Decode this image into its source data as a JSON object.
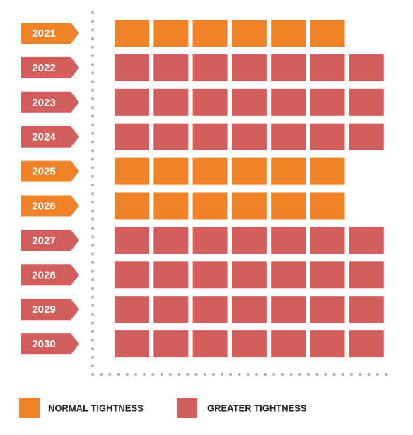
{
  "chart_data": {
    "type": "pictograph",
    "categories": [
      "2021",
      "2022",
      "2023",
      "2024",
      "2025",
      "2026",
      "2027",
      "2028",
      "2029",
      "2030"
    ],
    "series": [
      {
        "name": "NORMAL TIGHTNESS",
        "color": "#f0832a",
        "values": [
          6,
          null,
          null,
          null,
          6,
          6,
          null,
          null,
          null,
          null
        ]
      },
      {
        "name": "GREATER TIGHTNESS",
        "color": "#d45d5e",
        "values": [
          null,
          7,
          7,
          7,
          null,
          null,
          7,
          7,
          7,
          7
        ]
      }
    ]
  }
}
